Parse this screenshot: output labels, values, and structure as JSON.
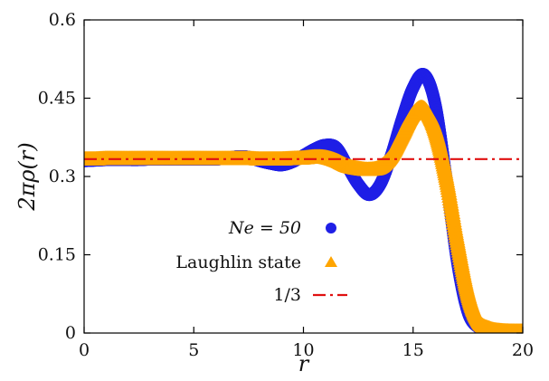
{
  "chart_data": {
    "type": "scatter",
    "xlabel": "r",
    "ylabel": "2πρ(r)",
    "xlim": [
      0,
      20
    ],
    "ylim": [
      0,
      0.6
    ],
    "xticks": [
      "0",
      "5",
      "10",
      "15",
      "20"
    ],
    "yticks": [
      "0",
      "0.15",
      "0.3",
      "0.45",
      "0.6"
    ],
    "grid": false,
    "legend_placement": "center-bottom",
    "series": [
      {
        "name": "N_e = 50",
        "legend_label": "Ne = 50",
        "marker": "circle",
        "color": "#1f1fe6",
        "x": [
          0,
          0.5,
          1,
          1.5,
          2,
          2.5,
          3,
          3.5,
          4,
          4.5,
          5,
          5.5,
          6,
          6.5,
          7,
          7.5,
          8,
          8.5,
          9,
          9.5,
          10,
          10.5,
          11,
          11.5,
          12,
          12.5,
          13,
          13.5,
          14,
          14.5,
          15,
          15.5,
          16,
          16.5,
          17,
          17.5,
          18,
          18.5,
          19,
          19.5,
          20
        ],
        "y": [
          0.33,
          0.331,
          0.332,
          0.332,
          0.332,
          0.332,
          0.333,
          0.333,
          0.333,
          0.333,
          0.333,
          0.333,
          0.333,
          0.335,
          0.338,
          0.337,
          0.33,
          0.325,
          0.322,
          0.328,
          0.34,
          0.352,
          0.36,
          0.355,
          0.32,
          0.285,
          0.265,
          0.285,
          0.34,
          0.41,
          0.47,
          0.495,
          0.44,
          0.3,
          0.14,
          0.04,
          0.01,
          0.003,
          0.001,
          0,
          0
        ]
      },
      {
        "name": "Laughlin state",
        "legend_label": "Laughlin state",
        "marker": "triangle",
        "color": "#ffa500",
        "x": [
          0,
          0.5,
          1,
          1.5,
          2,
          2.5,
          3,
          3.5,
          4,
          4.5,
          5,
          5.5,
          6,
          6.5,
          7,
          7.5,
          8,
          8.5,
          9,
          9.5,
          10,
          10.5,
          11,
          11.5,
          12,
          12.5,
          13,
          13.5,
          14,
          14.5,
          15,
          15.5,
          16,
          16.5,
          17,
          17.5,
          18,
          18.5,
          19,
          19.5,
          20
        ],
        "y": [
          0.333,
          0.333,
          0.334,
          0.334,
          0.334,
          0.334,
          0.334,
          0.334,
          0.334,
          0.334,
          0.334,
          0.334,
          0.334,
          0.334,
          0.334,
          0.334,
          0.333,
          0.333,
          0.333,
          0.334,
          0.335,
          0.337,
          0.336,
          0.33,
          0.32,
          0.315,
          0.313,
          0.318,
          0.34,
          0.38,
          0.42,
          0.43,
          0.39,
          0.3,
          0.18,
          0.075,
          0.022,
          0.008,
          0.004,
          0.003,
          0.003
        ]
      },
      {
        "name": "1/3",
        "legend_label": "1/3",
        "type": "line",
        "style": "dash-dot",
        "color": "#e01010",
        "value": 0.3333
      }
    ]
  }
}
